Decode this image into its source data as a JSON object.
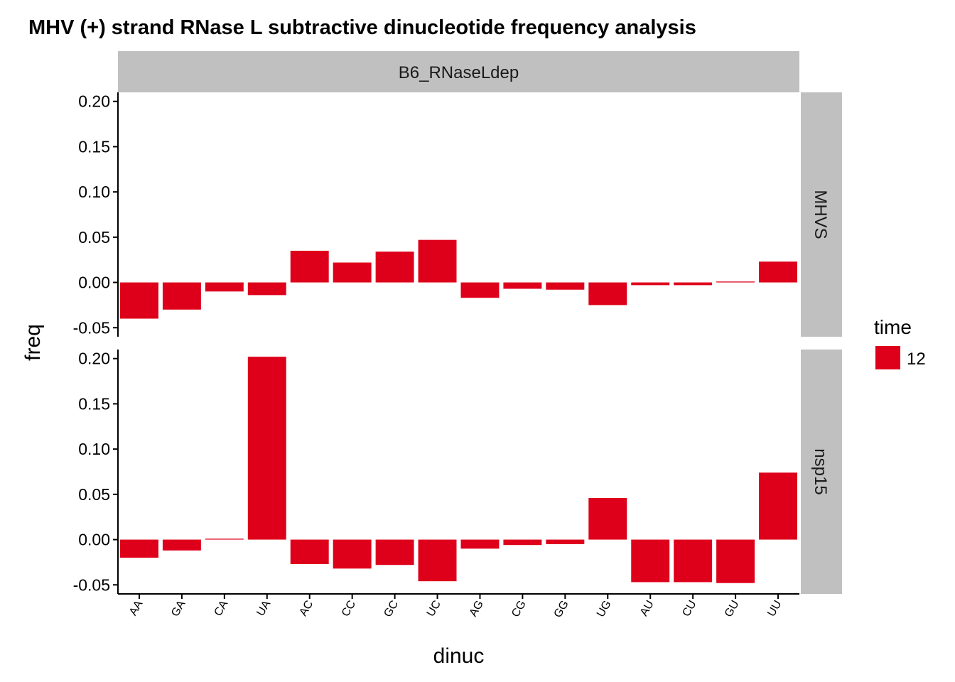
{
  "chart_data": {
    "type": "bar",
    "title": "MHV (+) strand RNase L subtractive dinucleotide frequency analysis",
    "xlabel": "dinuc",
    "ylabel": "freq",
    "column_facet": "B6_RNaseLdep",
    "categories": [
      "AA",
      "GA",
      "CA",
      "UA",
      "AC",
      "CC",
      "GC",
      "UC",
      "AG",
      "CG",
      "GG",
      "UG",
      "AU",
      "CU",
      "GU",
      "UU"
    ],
    "ylim": [
      -0.06,
      0.21
    ],
    "yticks": [
      "-0.05",
      "0.00",
      "0.05",
      "0.10",
      "0.15",
      "0.20"
    ],
    "legend": {
      "title": "time",
      "entries": [
        {
          "label": "12",
          "color": "#de001a"
        }
      ]
    },
    "bar_color": "#de001a",
    "panels": [
      {
        "name": "MHVS",
        "values": [
          -0.04,
          -0.03,
          -0.01,
          -0.014,
          0.035,
          0.022,
          0.034,
          0.047,
          -0.017,
          -0.007,
          -0.008,
          -0.025,
          -0.003,
          -0.003,
          0.001,
          0.023
        ]
      },
      {
        "name": "nsp15",
        "values": [
          -0.02,
          -0.012,
          0.001,
          0.202,
          -0.027,
          -0.032,
          -0.028,
          -0.046,
          -0.01,
          -0.006,
          -0.005,
          0.046,
          -0.047,
          -0.047,
          -0.048,
          0.074
        ]
      }
    ]
  }
}
